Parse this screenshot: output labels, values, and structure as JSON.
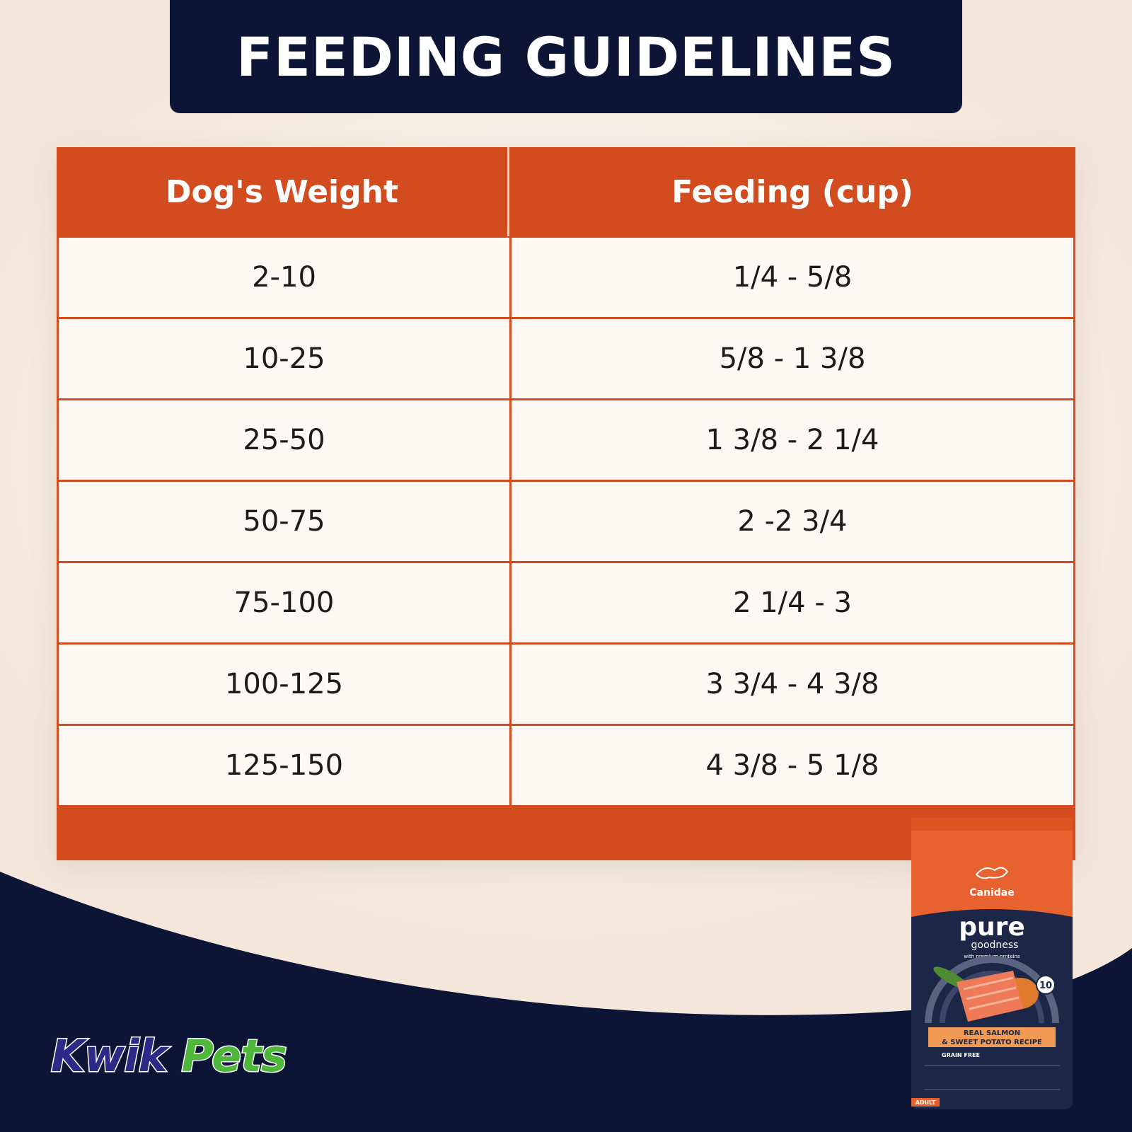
{
  "header": {
    "title": "FEEDING GUIDELINES"
  },
  "table": {
    "headers": [
      "Dog's Weight",
      "Feeding (cup)"
    ],
    "rows": [
      [
        "2-10",
        "1/4 - 5/8"
      ],
      [
        "10-25",
        "5/8 - 1 3/8"
      ],
      [
        "25-50",
        "1 3/8 - 2 1/4"
      ],
      [
        "50-75",
        "2 -2 3/4"
      ],
      [
        "75-100",
        "2 1/4 - 3"
      ],
      [
        "100-125",
        "3 3/4 - 4 3/8"
      ],
      [
        "125-150",
        "4 3/8 - 5 1/8"
      ]
    ]
  },
  "brand": {
    "kwik": "Kwik",
    "pets": "Pets"
  },
  "product": {
    "brand": "Canidae",
    "line": "pure",
    "subline": "goodness",
    "tagline": "with premium proteins",
    "recipe_1": "REAL SALMON",
    "recipe_2": "& SWEET POTATO RECIPE",
    "grain": "GRAIN FREE",
    "stage": "ADULT",
    "badge": "10"
  },
  "colors": {
    "navy": "#0d1536",
    "orange": "#d24c1f",
    "cell": "#fdf8f3",
    "kwik_blue": "#2c2a86",
    "pets_green": "#4fb83a"
  }
}
